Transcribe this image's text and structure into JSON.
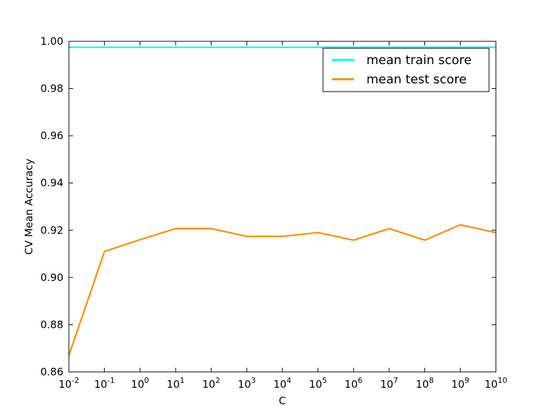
{
  "chart_data": {
    "type": "line",
    "title": "",
    "xlabel": "C",
    "ylabel": "CV Mean Accuracy",
    "xscale": "log",
    "x": [
      0.01,
      0.1,
      1,
      10,
      100,
      1000,
      10000,
      100000,
      1000000,
      10000000,
      100000000,
      1000000000,
      10000000000
    ],
    "xlim": [
      0.01,
      10000000000
    ],
    "ylim": [
      0.86,
      1.0
    ],
    "yticks": [
      0.86,
      0.88,
      0.9,
      0.92,
      0.94,
      0.96,
      0.98,
      1.0
    ],
    "ytick_labels": [
      "0.86",
      "0.88",
      "0.90",
      "0.92",
      "0.94",
      "0.96",
      "0.98",
      "1.00"
    ],
    "xticks": [
      {
        "value": 0.01,
        "base": "10",
        "exp": "-2"
      },
      {
        "value": 0.1,
        "base": "10",
        "exp": "-1"
      },
      {
        "value": 1,
        "base": "10",
        "exp": "0"
      },
      {
        "value": 10,
        "base": "10",
        "exp": "1"
      },
      {
        "value": 100,
        "base": "10",
        "exp": "2"
      },
      {
        "value": 1000,
        "base": "10",
        "exp": "3"
      },
      {
        "value": 10000,
        "base": "10",
        "exp": "4"
      },
      {
        "value": 100000,
        "base": "10",
        "exp": "5"
      },
      {
        "value": 1000000,
        "base": "10",
        "exp": "6"
      },
      {
        "value": 10000000,
        "base": "10",
        "exp": "7"
      },
      {
        "value": 100000000,
        "base": "10",
        "exp": "8"
      },
      {
        "value": 1000000000,
        "base": "10",
        "exp": "9"
      },
      {
        "value": 10000000000,
        "base": "10",
        "exp": "10"
      }
    ],
    "grid": false,
    "legend_position": "top-right",
    "series": [
      {
        "name": "mean train score",
        "color": "#00ffff",
        "values": [
          0.9975,
          0.9975,
          0.9975,
          0.9975,
          0.9975,
          0.9975,
          0.9975,
          0.9975,
          0.9975,
          0.9975,
          0.9975,
          0.9975,
          0.9975
        ]
      },
      {
        "name": "mean test score",
        "color": "#ff8c00",
        "values": [
          0.867,
          0.911,
          0.916,
          0.9207,
          0.9207,
          0.9174,
          0.9174,
          0.919,
          0.9158,
          0.9207,
          0.9158,
          0.9223,
          0.919
        ]
      }
    ]
  }
}
